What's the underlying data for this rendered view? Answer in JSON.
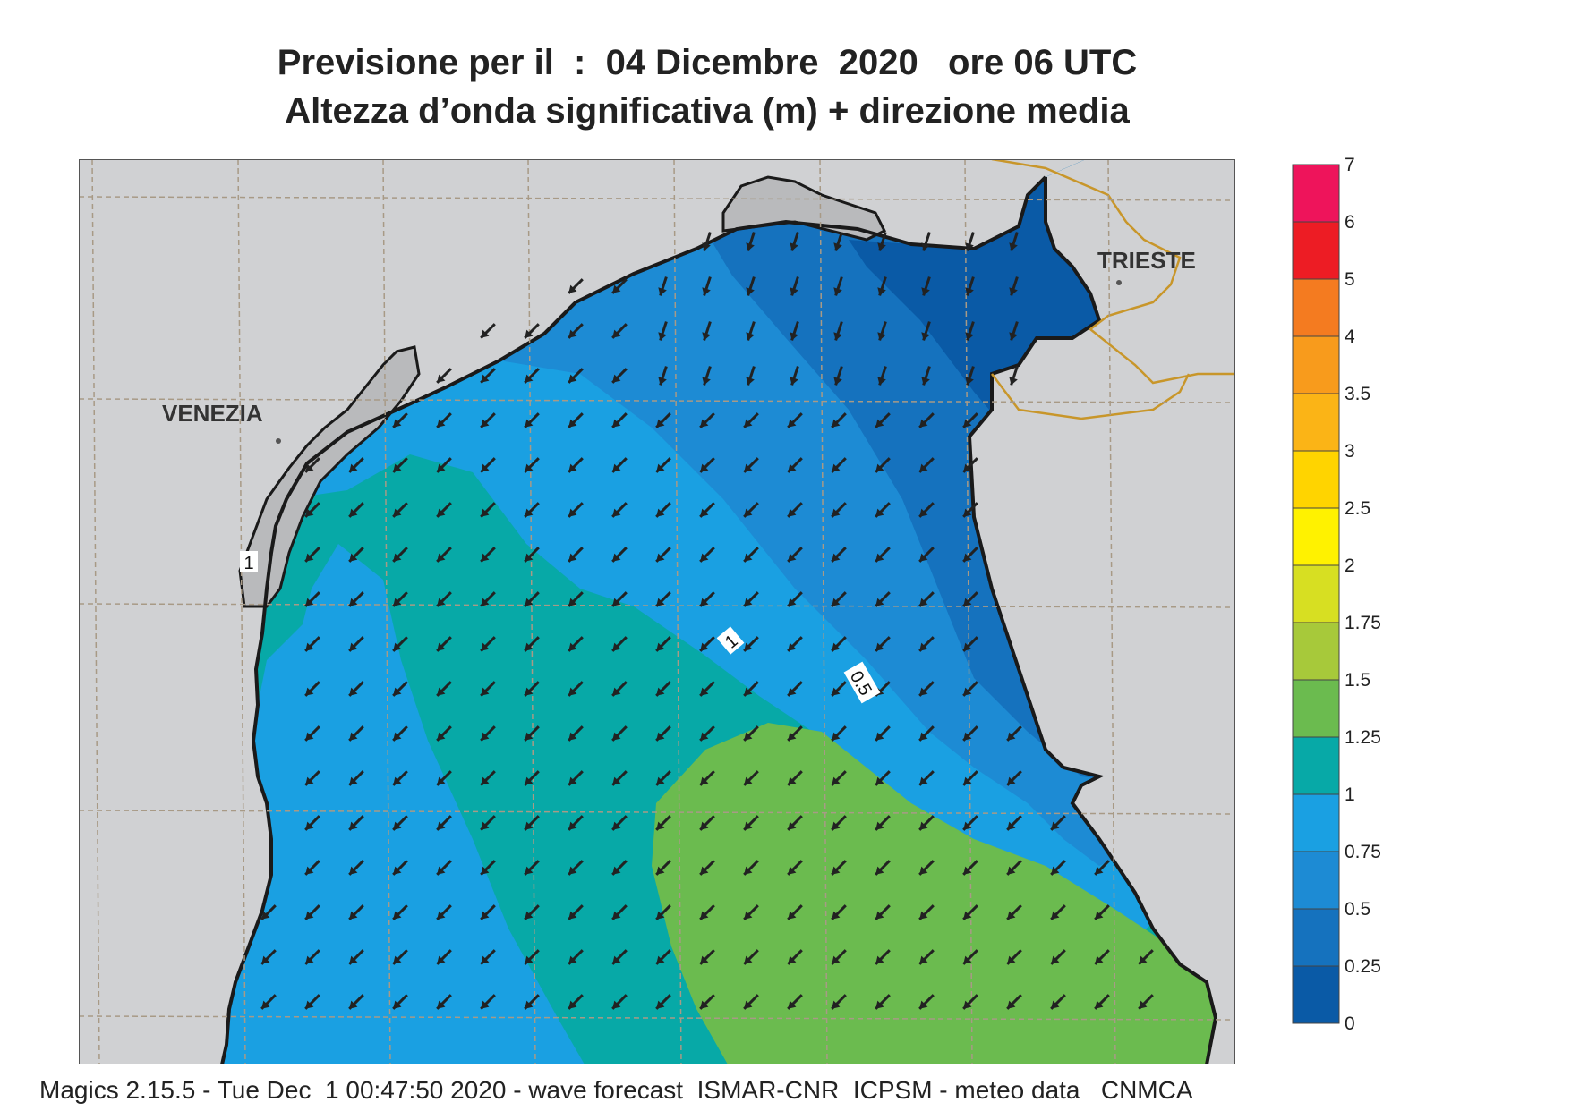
{
  "title_line1": "Previsione per il  :  04 Dicembre  2020   ore 06 UTC",
  "title_line2": "Altezza d’onda significativa (m) + direzione media",
  "footer": "Magics 2.15.5 - Tue Dec  1 00:47:50 2020 - wave forecast  ISMAR-CNR  ICPSM - meteo data   CNMCA",
  "cities": {
    "venezia": "VENEZIA",
    "trieste": "TRIESTE"
  },
  "contour_labels": [
    "1",
    "1",
    "0.5"
  ],
  "legend": {
    "levels": [
      "0",
      "0.25",
      "0.5",
      "0.75",
      "1",
      "1.25",
      "1.5",
      "1.75",
      "2",
      "2.5",
      "3",
      "3.5",
      "4",
      "5",
      "6",
      "7"
    ],
    "colors": [
      "#0a5aa6",
      "#1572be",
      "#1d8bd4",
      "#1aa0e2",
      "#07a9a7",
      "#6bbb4f",
      "#a7c93a",
      "#d7df22",
      "#fff200",
      "#ffd400",
      "#fbb416",
      "#f89b1c",
      "#f47b20",
      "#ed1c24",
      "#ee145b"
    ]
  },
  "colors": {
    "land": "#d0d1d3",
    "coast": "#1a1a1a",
    "grid": "#a89a86",
    "border": "#c8962a",
    "arrow": "#222222"
  }
}
